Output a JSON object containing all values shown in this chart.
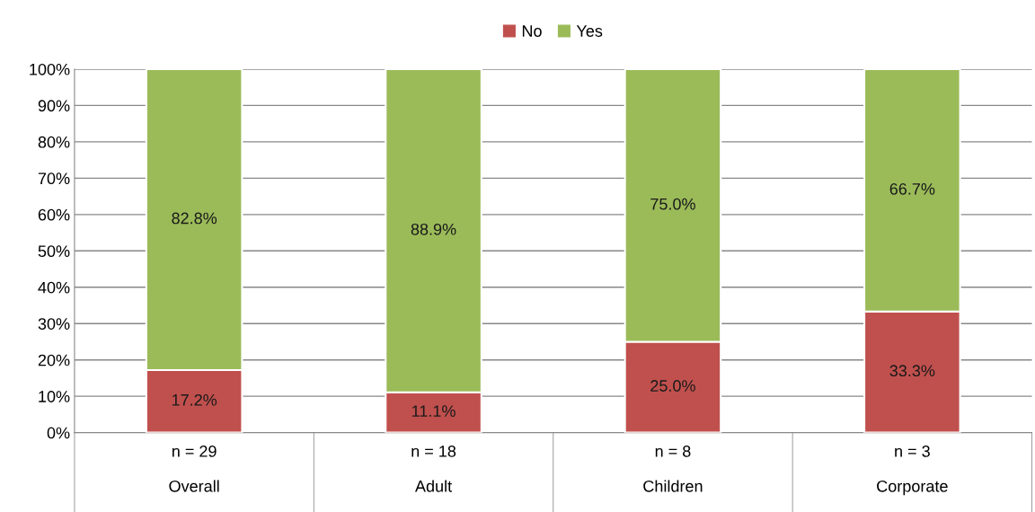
{
  "chart_data": {
    "type": "bar",
    "stacked": true,
    "categories": [
      "n = 29\n\nOverall",
      "n = 18\n\nAdult",
      "n = 8\n\nChildren",
      "n = 3\n\nCorporate"
    ],
    "series": [
      {
        "name": "No",
        "color": "#c0504d",
        "values": [
          17.2,
          11.1,
          25.0,
          33.3
        ],
        "value_labels": [
          "17.2%",
          "11.1%",
          "25.0%",
          "33.3%"
        ]
      },
      {
        "name": "Yes",
        "color": "#9bbb59",
        "values": [
          82.8,
          88.9,
          75.0,
          66.7
        ],
        "value_labels": [
          "82.8%",
          "88.9%",
          "75.0%",
          "66.7%"
        ]
      }
    ],
    "ylim": [
      0,
      100
    ],
    "yticks": [
      {
        "value": 0,
        "label": "0%"
      },
      {
        "value": 10,
        "label": "10%"
      },
      {
        "value": 20,
        "label": "20%"
      },
      {
        "value": 30,
        "label": "30%"
      },
      {
        "value": 40,
        "label": "40%"
      },
      {
        "value": 50,
        "label": "50%"
      },
      {
        "value": 60,
        "label": "60%"
      },
      {
        "value": 70,
        "label": "70%"
      },
      {
        "value": 80,
        "label": "80%"
      },
      {
        "value": 90,
        "label": "90%"
      },
      {
        "value": 100,
        "label": "100%"
      }
    ],
    "grid": "y",
    "legend": "top"
  }
}
